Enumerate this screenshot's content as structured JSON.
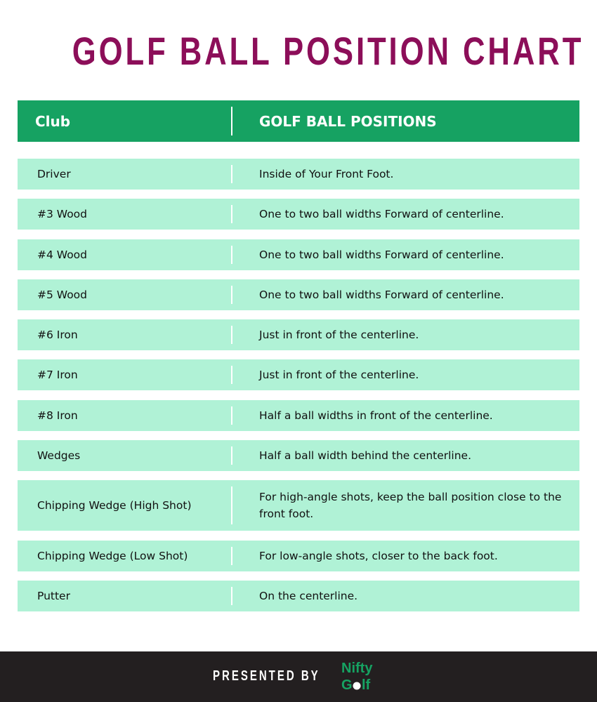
{
  "title": "GOLF BALL POSITION CHART",
  "table": {
    "headers": [
      "Club",
      "GOLF BALL POSITIONS"
    ],
    "rows": [
      {
        "club": "Driver",
        "position": "Inside of Your Front Foot."
      },
      {
        "club": "#3 Wood",
        "position": "One to two ball widths Forward of centerline."
      },
      {
        "club": "#4 Wood",
        "position": "One to two ball widths Forward of centerline."
      },
      {
        "club": "#5 Wood",
        "position": "One to two ball widths Forward of centerline."
      },
      {
        "club": "#6 Iron",
        "position": "Just in front of the centerline."
      },
      {
        "club": "#7 Iron",
        "position": "Just in front of the centerline."
      },
      {
        "club": "#8 Iron",
        "position": "Half a ball widths in front of the centerline."
      },
      {
        "club": "Wedges",
        "position": "Half a ball width behind the centerline."
      },
      {
        "club": "Chipping Wedge (High Shot)",
        "position": "For high-angle shots, keep the ball position close to the front foot."
      },
      {
        "club": "Chipping Wedge (Low Shot)",
        "position": "For low-angle shots, closer to the back foot."
      },
      {
        "club": "Putter",
        "position": "On the centerline."
      }
    ]
  },
  "footer": {
    "presented_by": "PRESENTED BY",
    "logo_text": "Nifty Golf"
  },
  "colors": {
    "title": "#8c0e59",
    "header": "#16a262",
    "row": "#b0f2d6",
    "footer": "#231f20"
  }
}
